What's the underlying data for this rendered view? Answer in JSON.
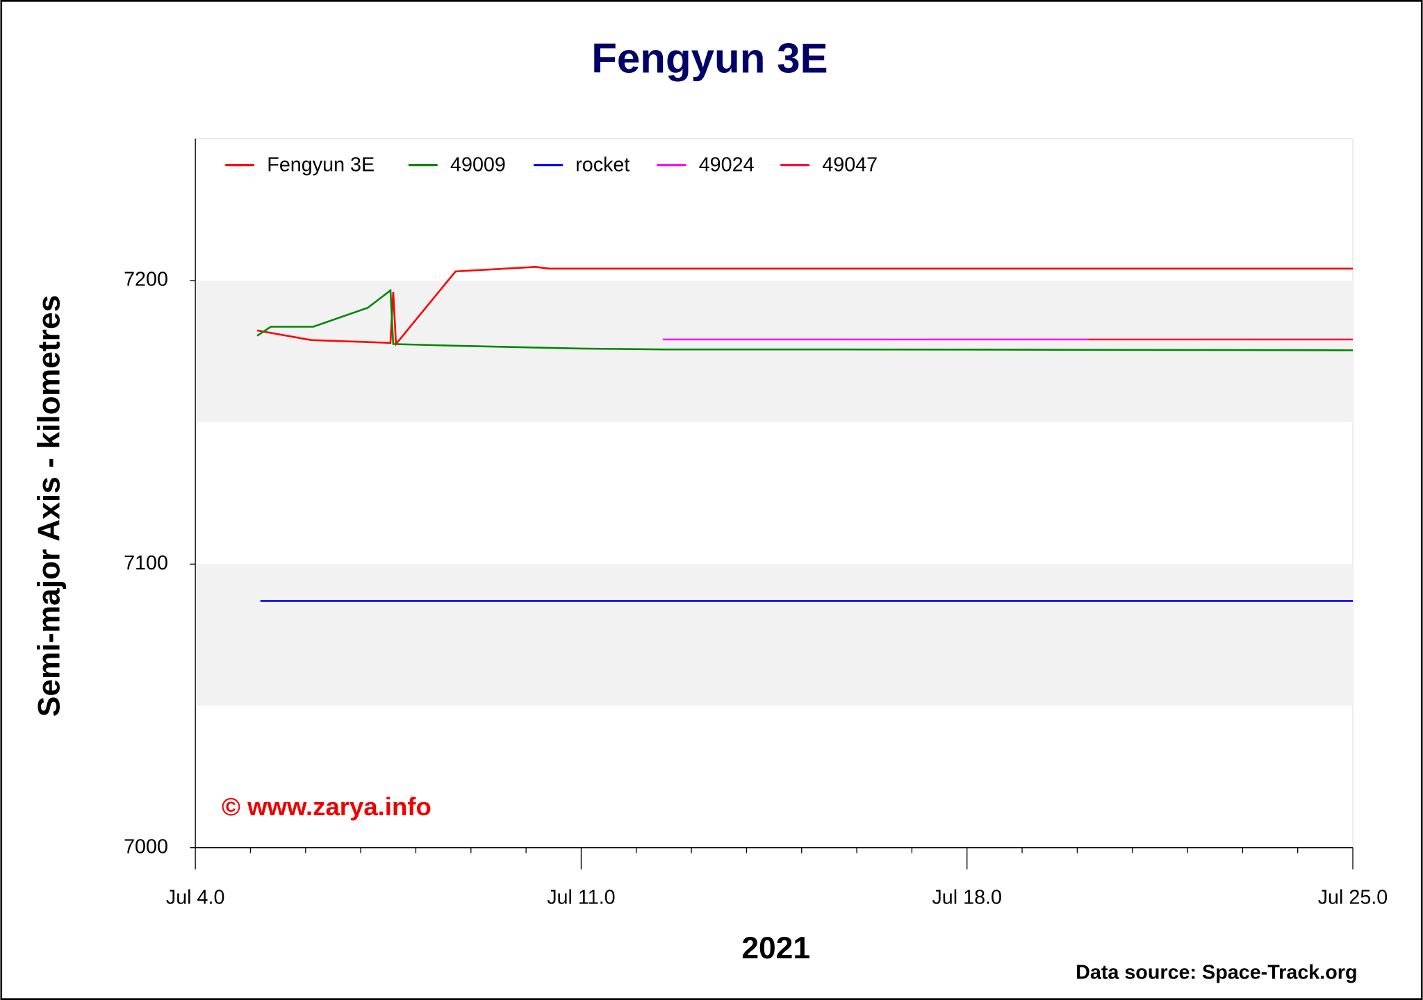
{
  "chart_data": {
    "type": "line",
    "title": "Fengyun 3E",
    "x_label": "2021",
    "y_label": "Semi-major Axis - kilometres",
    "annotation": "© www.zarya.info",
    "source": "Data source: Space-Track.org",
    "xlim": [
      4,
      25
    ],
    "xticks": [
      {
        "value": 4,
        "label": "Jul 4.0"
      },
      {
        "value": 11,
        "label": "Jul 11.0"
      },
      {
        "value": 18,
        "label": "Jul 18.0"
      },
      {
        "value": 25,
        "label": "Jul 25.0"
      }
    ],
    "xminorticks": [
      5,
      6,
      7,
      8,
      9,
      10,
      12,
      13,
      14,
      15,
      16,
      17,
      19,
      20,
      21,
      22,
      23,
      24
    ],
    "ylim": [
      7000,
      7250
    ],
    "yticks": [
      7000,
      7100,
      7200
    ],
    "band_color": "#f2f2f2",
    "legend": "top-left",
    "series": [
      {
        "name": "Fengyun 3E",
        "color": "#ff0000",
        "x": [
          5.12,
          6.1,
          7.54,
          7.59,
          7.64,
          8.72,
          10.17,
          10.42,
          25
        ],
        "values": [
          7182.4,
          7179,
          7178,
          7196,
          7177.6,
          7203.2,
          7204.8,
          7204.2,
          7204.2
        ]
      },
      {
        "name": "49009",
        "color": "#008800",
        "x": [
          5.12,
          5.37,
          6.14,
          7.13,
          7.54,
          7.59,
          8.69,
          11,
          12.48,
          15.6,
          25
        ],
        "values": [
          7180.5,
          7183.7,
          7183.7,
          7190.4,
          7196.5,
          7177.6,
          7177,
          7176,
          7175.7,
          7175.7,
          7175.4
        ]
      },
      {
        "name": "rocket",
        "color": "#0000ff",
        "x": [
          5.18,
          25
        ],
        "values": [
          7087,
          7087
        ]
      },
      {
        "name": "49024",
        "color": "#ff00ff",
        "x": [
          12.48,
          20.2
        ],
        "values": [
          7179.2,
          7179.2
        ]
      },
      {
        "name": "49047",
        "color": "#ff0040",
        "x": [
          20.2,
          25
        ],
        "values": [
          7179.2,
          7179.2
        ]
      }
    ]
  }
}
